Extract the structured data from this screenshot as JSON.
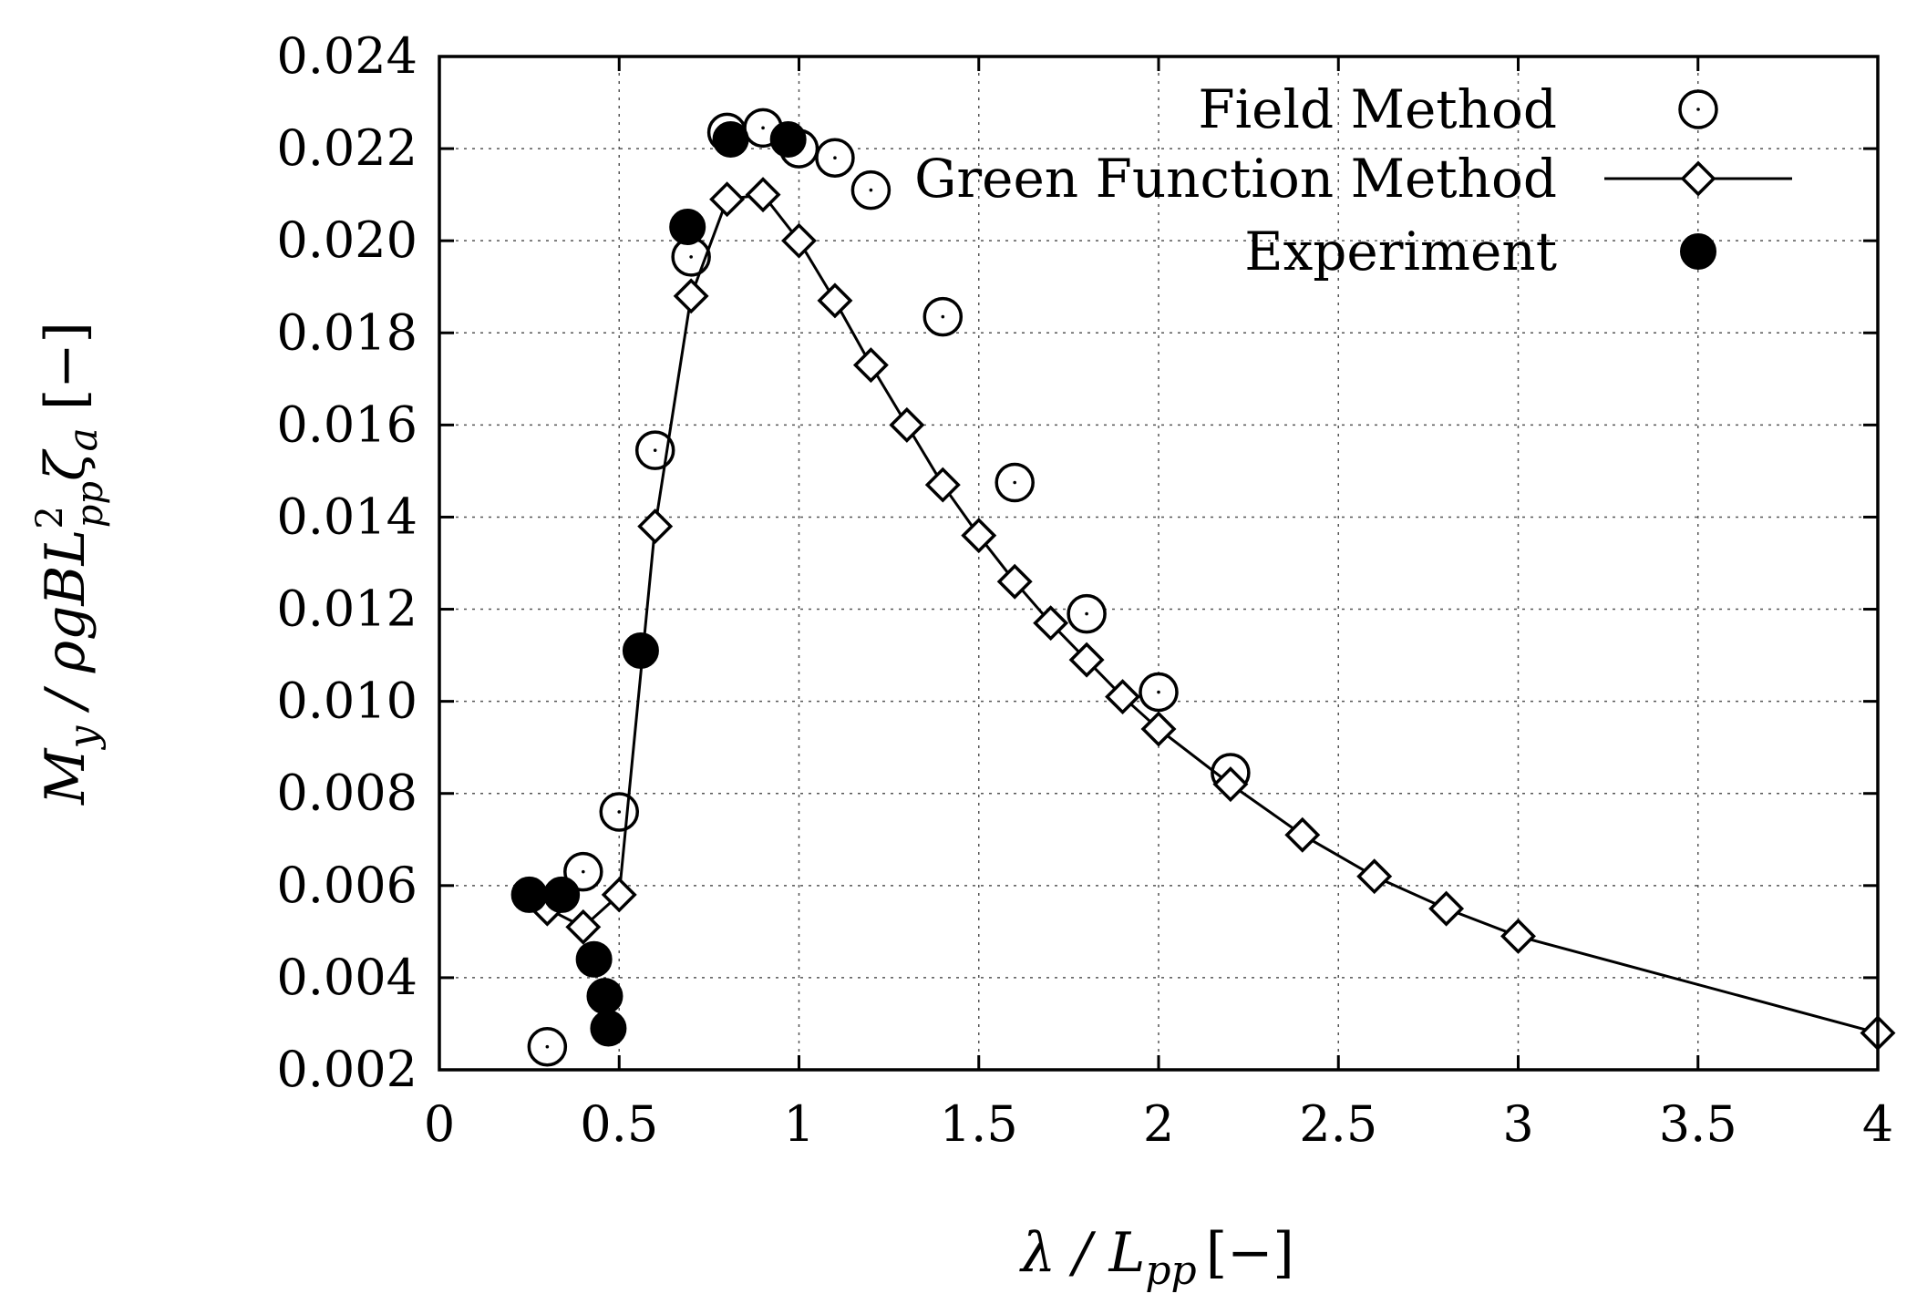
{
  "chart_data": {
    "type": "scatter",
    "xlabel": "λ / L",
    "xlabel_sub": "pp",
    "xlabel_unit": "[−]",
    "ylabel": "M",
    "ylabel_y": "y",
    "ylabel_mid": " / ρgBL",
    "ylabel_sup": "2",
    "ylabel_sub": "pp",
    "ylabel_tail": "ζ",
    "ylabel_tail_sub": "a",
    "ylabel_unit": " [−]",
    "xlim": [
      0,
      4
    ],
    "ylim": [
      0.002,
      0.024
    ],
    "x_ticks": [
      {
        "value": 0,
        "label": "0"
      },
      {
        "value": 0.5,
        "label": "0.5"
      },
      {
        "value": 1,
        "label": "1"
      },
      {
        "value": 1.5,
        "label": "1.5"
      },
      {
        "value": 2,
        "label": "2"
      },
      {
        "value": 2.5,
        "label": "2.5"
      },
      {
        "value": 3,
        "label": "3"
      },
      {
        "value": 3.5,
        "label": "3.5"
      },
      {
        "value": 4,
        "label": "4"
      }
    ],
    "y_ticks": [
      {
        "value": 0.002,
        "label": "0.002"
      },
      {
        "value": 0.004,
        "label": "0.004"
      },
      {
        "value": 0.006,
        "label": "0.006"
      },
      {
        "value": 0.008,
        "label": "0.008"
      },
      {
        "value": 0.01,
        "label": "0.010"
      },
      {
        "value": 0.012,
        "label": "0.012"
      },
      {
        "value": 0.014,
        "label": "0.014"
      },
      {
        "value": 0.016,
        "label": "0.016"
      },
      {
        "value": 0.018,
        "label": "0.018"
      },
      {
        "value": 0.02,
        "label": "0.020"
      },
      {
        "value": 0.022,
        "label": "0.022"
      },
      {
        "value": 0.024,
        "label": "0.024"
      }
    ],
    "grid": true,
    "legend_position": "top-right",
    "series": [
      {
        "name": "Field Method",
        "marker": "open-circle",
        "line": false,
        "color": "#000000",
        "x": [
          0.3,
          0.4,
          0.5,
          0.6,
          0.7,
          0.8,
          0.9,
          1.0,
          1.1,
          1.2,
          1.4,
          1.6,
          1.8,
          2.0,
          2.2
        ],
        "y": [
          0.0025,
          0.0063,
          0.0076,
          0.01545,
          0.01965,
          0.02235,
          0.02245,
          0.022,
          0.0218,
          0.0211,
          0.01835,
          0.01475,
          0.0119,
          0.0102,
          0.00845
        ]
      },
      {
        "name": "Green Function Method",
        "marker": "open-diamond",
        "line": true,
        "color": "#000000",
        "x": [
          0.3,
          0.4,
          0.5,
          0.6,
          0.7,
          0.8,
          0.9,
          1.0,
          1.1,
          1.2,
          1.3,
          1.4,
          1.5,
          1.6,
          1.7,
          1.8,
          1.9,
          2.0,
          2.2,
          2.4,
          2.6,
          2.8,
          3.0,
          4.0
        ],
        "y": [
          0.0055,
          0.0051,
          0.0058,
          0.0138,
          0.0188,
          0.0209,
          0.021,
          0.02,
          0.0187,
          0.0173,
          0.016,
          0.0147,
          0.0136,
          0.0126,
          0.0117,
          0.0109,
          0.0101,
          0.0094,
          0.0082,
          0.0071,
          0.0062,
          0.0055,
          0.0049,
          0.0028
        ]
      },
      {
        "name": "Experiment",
        "marker": "filled-circle",
        "line": false,
        "color": "#000000",
        "x": [
          0.25,
          0.34,
          0.43,
          0.46,
          0.47,
          0.56,
          0.69,
          0.81,
          0.97
        ],
        "y": [
          0.0058,
          0.0058,
          0.0044,
          0.0036,
          0.0029,
          0.0111,
          0.0203,
          0.0222,
          0.0222
        ]
      }
    ]
  }
}
